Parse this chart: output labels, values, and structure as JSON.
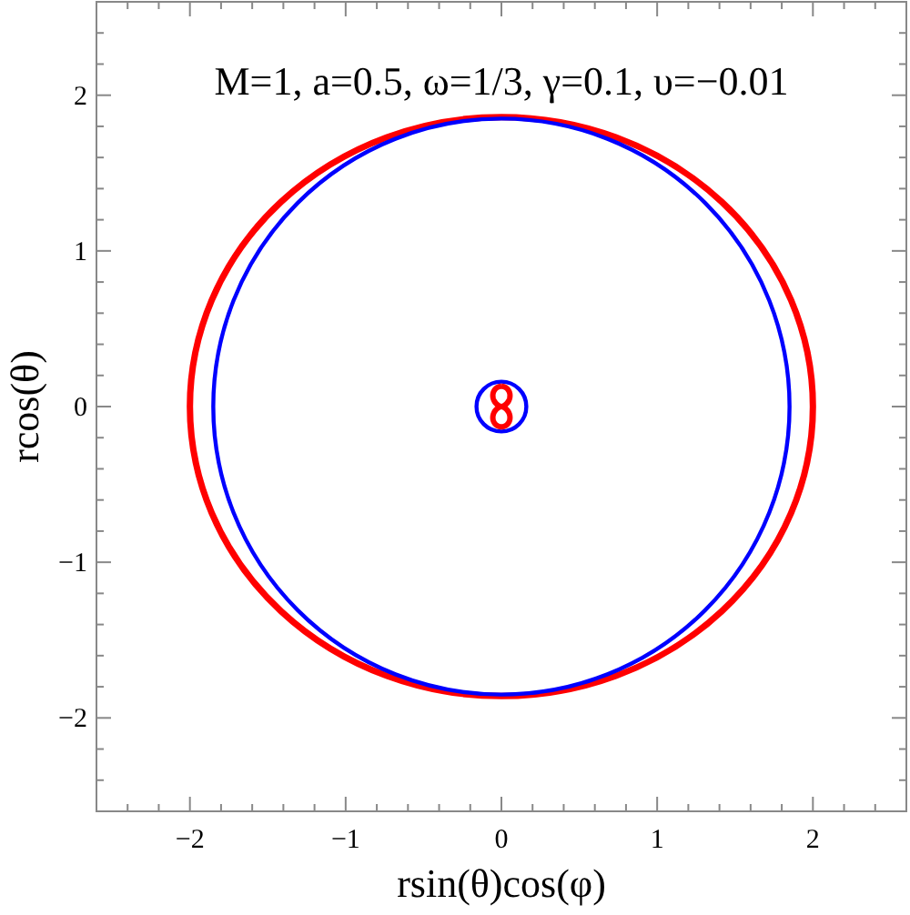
{
  "chart_data": {
    "type": "line",
    "title": "M=1, a=0.5, ω=1/3, γ=0.1, υ=−0.01",
    "xlabel": "rsin(θ)cos(φ)",
    "ylabel": "rcos(θ)",
    "xlim": [
      -2.6,
      2.6
    ],
    "ylim": [
      -2.6,
      2.6
    ],
    "xticks": [
      {
        "value": -2.4,
        "label": null
      },
      {
        "value": -2.2,
        "label": null
      },
      -2,
      {
        "value": -1.8,
        "label": null
      },
      {
        "value": -1.6,
        "label": null
      },
      {
        "value": -1.4,
        "label": null
      },
      {
        "value": -1.2,
        "label": null
      },
      -1,
      {
        "value": -0.8,
        "label": null
      },
      {
        "value": -0.6,
        "label": null
      },
      {
        "value": -0.4,
        "label": null
      },
      {
        "value": -0.2,
        "label": null
      },
      0,
      {
        "value": 0.2,
        "label": null
      },
      {
        "value": 0.4,
        "label": null
      },
      {
        "value": 0.6,
        "label": null
      },
      {
        "value": 0.8,
        "label": null
      },
      1,
      {
        "value": 1.2,
        "label": null
      },
      {
        "value": 1.4,
        "label": null
      },
      {
        "value": 1.6,
        "label": null
      },
      {
        "value": 1.8,
        "label": null
      },
      2,
      {
        "value": 2.2,
        "label": null
      },
      {
        "value": 2.4,
        "label": null
      }
    ],
    "yticks": [
      {
        "value": -2.4,
        "label": null
      },
      {
        "value": -2.2,
        "label": null
      },
      -2,
      {
        "value": -1.8,
        "label": null
      },
      {
        "value": -1.6,
        "label": null
      },
      {
        "value": -1.4,
        "label": null
      },
      {
        "value": -1.2,
        "label": null
      },
      -1,
      {
        "value": -0.8,
        "label": null
      },
      {
        "value": -0.6,
        "label": null
      },
      {
        "value": -0.4,
        "label": null
      },
      {
        "value": -0.2,
        "label": null
      },
      0,
      {
        "value": 0.2,
        "label": null
      },
      {
        "value": 0.4,
        "label": null
      },
      {
        "value": 0.6,
        "label": null
      },
      {
        "value": 0.8,
        "label": null
      },
      1,
      {
        "value": 1.2,
        "label": null
      },
      {
        "value": 1.4,
        "label": null
      },
      {
        "value": 1.6,
        "label": null
      },
      {
        "value": 1.8,
        "label": null
      },
      2,
      {
        "value": 2.2,
        "label": null
      },
      {
        "value": 2.4,
        "label": null
      }
    ]
  }
}
